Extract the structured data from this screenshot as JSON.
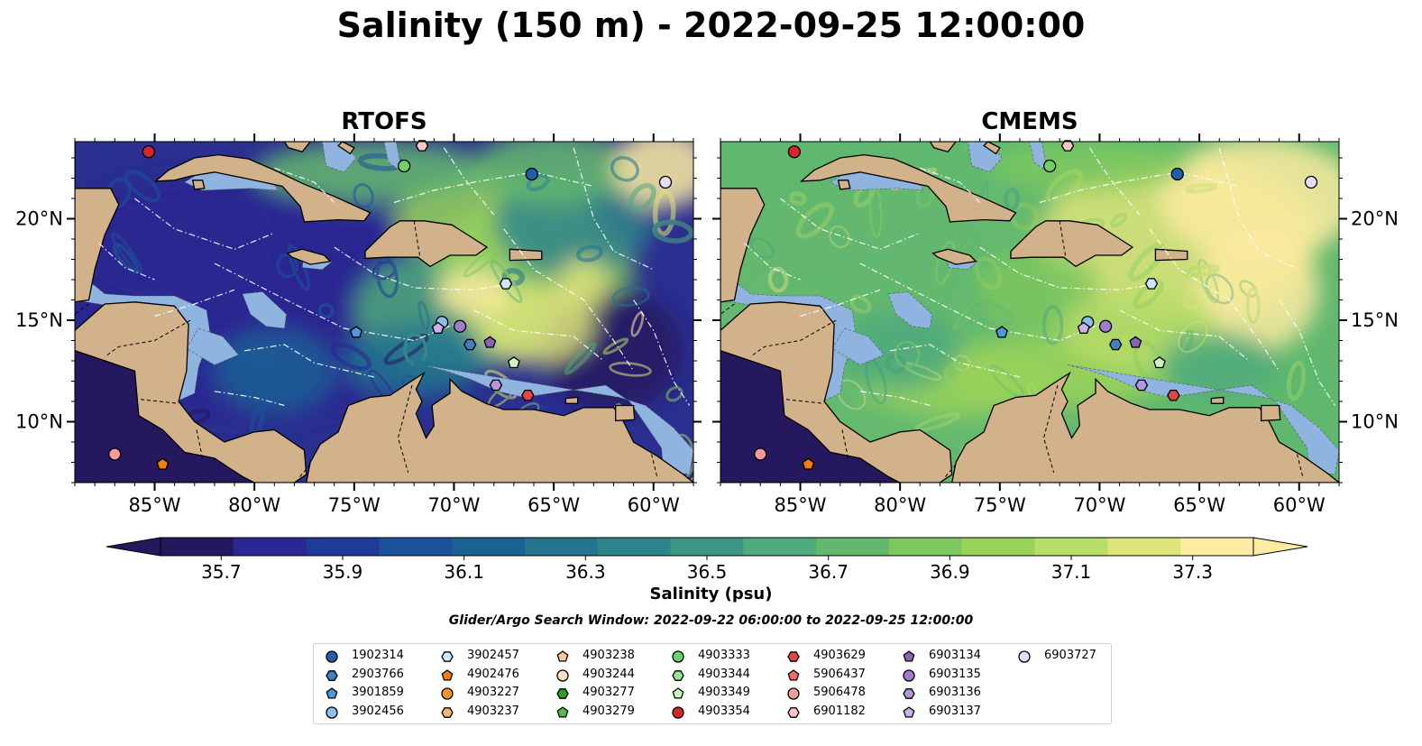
{
  "figure": {
    "title": "Salinity (150 m) - 2022-09-25 12:00:00",
    "colorbar_label": "Salinity (psu)",
    "search_window": "Glider/Argo Search Window: 2022-09-22 06:00:00 to 2022-09-25 12:00:00"
  },
  "panels": [
    {
      "title": "RTOFS",
      "ocean_base": "#2a2f90"
    },
    {
      "title": "CMEMS",
      "ocean_base": "#5fb86e"
    }
  ],
  "axes": {
    "lon_range": [
      -89,
      -58
    ],
    "lat_range": [
      7,
      23.8
    ],
    "x_ticks": [
      "85°W",
      "80°W",
      "75°W",
      "70°W",
      "65°W",
      "60°W"
    ],
    "x_tick_values": [
      -85,
      -80,
      -75,
      -70,
      -65,
      -60
    ],
    "y_ticks": [
      "20°N",
      "15°N",
      "10°N"
    ],
    "y_tick_values": [
      20,
      15,
      10
    ]
  },
  "colorbar": {
    "vmin": 35.6,
    "vmax": 37.4,
    "ticks": [
      "35.7",
      "35.9",
      "36.1",
      "36.3",
      "36.5",
      "36.7",
      "36.9",
      "37.1",
      "37.3"
    ],
    "colors": [
      "#26185f",
      "#2b2692",
      "#1e3b9a",
      "#1c529b",
      "#1a6296",
      "#22748f",
      "#2e848b",
      "#3d9585",
      "#4faa7d",
      "#64b86e",
      "#7ec85f",
      "#9ad35a",
      "#b8dd68",
      "#dde47a",
      "#fdeba1"
    ],
    "extend": "both"
  },
  "colors": {
    "land": "#d1b28a",
    "shelf": "#8fb4df",
    "coast": "#000000",
    "eez_line": "#ffffff"
  },
  "legend": {
    "items": [
      {
        "id": "1902314",
        "marker": "circle",
        "color": "#1f5fa8"
      },
      {
        "id": "2903766",
        "marker": "hexagon",
        "color": "#3f7fbf"
      },
      {
        "id": "3901859",
        "marker": "pentagon",
        "color": "#4f98d8"
      },
      {
        "id": "3902456",
        "marker": "circle",
        "color": "#8dbfed"
      },
      {
        "id": "3902457",
        "marker": "hexagon",
        "color": "#cde6fa"
      },
      {
        "id": "4902476",
        "marker": "pentagon",
        "color": "#f07f10"
      },
      {
        "id": "4903227",
        "marker": "circle",
        "color": "#f2952e"
      },
      {
        "id": "4903237",
        "marker": "hexagon",
        "color": "#f7b36b"
      },
      {
        "id": "4903238",
        "marker": "pentagon",
        "color": "#f9c999"
      },
      {
        "id": "4903244",
        "marker": "circle",
        "color": "#fde0c4"
      },
      {
        "id": "4903277",
        "marker": "hexagon",
        "color": "#2a9d2a"
      },
      {
        "id": "4903279",
        "marker": "pentagon",
        "color": "#52be4d"
      },
      {
        "id": "4903333",
        "marker": "circle",
        "color": "#6ed068"
      },
      {
        "id": "4903344",
        "marker": "hexagon",
        "color": "#9be493"
      },
      {
        "id": "4903349",
        "marker": "pentagon",
        "color": "#cdf5c4"
      },
      {
        "id": "4903354",
        "marker": "circle",
        "color": "#d62728"
      },
      {
        "id": "4903629",
        "marker": "hexagon",
        "color": "#e04848"
      },
      {
        "id": "5906437",
        "marker": "pentagon",
        "color": "#ee6c6c"
      },
      {
        "id": "5906478",
        "marker": "circle",
        "color": "#f59b9b"
      },
      {
        "id": "6901182",
        "marker": "hexagon",
        "color": "#fbc6c6"
      },
      {
        "id": "6903134",
        "marker": "pentagon",
        "color": "#8a63b8"
      },
      {
        "id": "6903135",
        "marker": "circle",
        "color": "#a07cc9"
      },
      {
        "id": "6903136",
        "marker": "hexagon",
        "color": "#b596da"
      },
      {
        "id": "6903137",
        "marker": "pentagon",
        "color": "#cbb2ea"
      },
      {
        "id": "6903727",
        "marker": "circle",
        "color": "#e9dcf7"
      }
    ]
  },
  "floats": [
    {
      "id": "4903354",
      "lon": -85.3,
      "lat": 23.3
    },
    {
      "id": "4903333",
      "lon": -72.5,
      "lat": 22.6
    },
    {
      "id": "6901182",
      "lon": -71.6,
      "lat": 23.6
    },
    {
      "id": "1902314",
      "lon": -66.1,
      "lat": 22.2
    },
    {
      "id": "6903727",
      "lon": -59.4,
      "lat": 21.8
    },
    {
      "id": "3902457",
      "lon": -67.4,
      "lat": 16.8
    },
    {
      "id": "3902456",
      "lon": -70.6,
      "lat": 14.9
    },
    {
      "id": "3901859",
      "lon": -74.9,
      "lat": 14.4
    },
    {
      "id": "6903137",
      "lon": -70.8,
      "lat": 14.6
    },
    {
      "id": "6903135",
      "lon": -69.7,
      "lat": 14.7
    },
    {
      "id": "2903766",
      "lon": -69.2,
      "lat": 13.8
    },
    {
      "id": "6903134",
      "lon": -68.2,
      "lat": 13.9
    },
    {
      "id": "4903349",
      "lon": -67.0,
      "lat": 12.9
    },
    {
      "id": "6903136",
      "lon": -67.9,
      "lat": 11.8
    },
    {
      "id": "4903629",
      "lon": -66.3,
      "lat": 11.3
    },
    {
      "id": "5906478",
      "lon": -87.0,
      "lat": 8.4
    },
    {
      "id": "4902476",
      "lon": -84.6,
      "lat": 7.9
    }
  ]
}
